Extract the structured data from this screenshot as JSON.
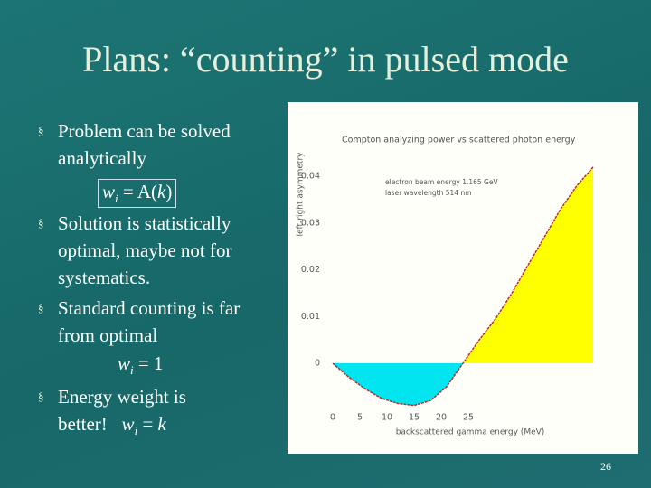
{
  "title": "Plans: “counting” in pulsed mode",
  "bullets": [
    {
      "text": "Problem can be solved analytically"
    },
    {
      "text": "Solution is statistically optimal, maybe not for systematics."
    },
    {
      "text": "Standard counting is far from optimal"
    },
    {
      "text": "Energy weight is better!"
    }
  ],
  "formulas": [
    [
      "w",
      "i",
      " = A(",
      "k",
      ")"
    ],
    [
      "w",
      "i",
      " = 1"
    ],
    [
      "w",
      "i",
      " = ",
      "k"
    ]
  ],
  "page_number": "26",
  "chart_data": {
    "type": "line",
    "title": "Compton analyzing power vs scattered photon energy",
    "x_label": "backscattered gamma energy (MeV)",
    "y_label": "left-right asymmetry",
    "annotations": [
      "electron beam energy 1.165 GeV",
      "laser wavelength 514 nm"
    ],
    "x": [
      0,
      3,
      6,
      9,
      12,
      15,
      18,
      21,
      24,
      27,
      30,
      33,
      36,
      39,
      42,
      45,
      48
    ],
    "series": [
      {
        "color": "#b03030",
        "values": [
          0,
          -0.003,
          -0.0055,
          -0.0075,
          -0.0086,
          -0.009,
          -0.008,
          -0.005,
          0,
          0.005,
          0.0095,
          0.015,
          0.021,
          0.027,
          0.033,
          0.038,
          0.042
        ]
      }
    ],
    "fill_below": "#00e5f0",
    "fill_above": "#ffff00",
    "xlim": [
      0,
      48
    ],
    "ylim": [
      -0.0105,
      0.049
    ],
    "xticks": [
      0,
      5,
      10,
      15,
      20,
      25
    ],
    "yticks": [
      0,
      0.01,
      0.02,
      0.03,
      0.04
    ],
    "grid": false
  }
}
